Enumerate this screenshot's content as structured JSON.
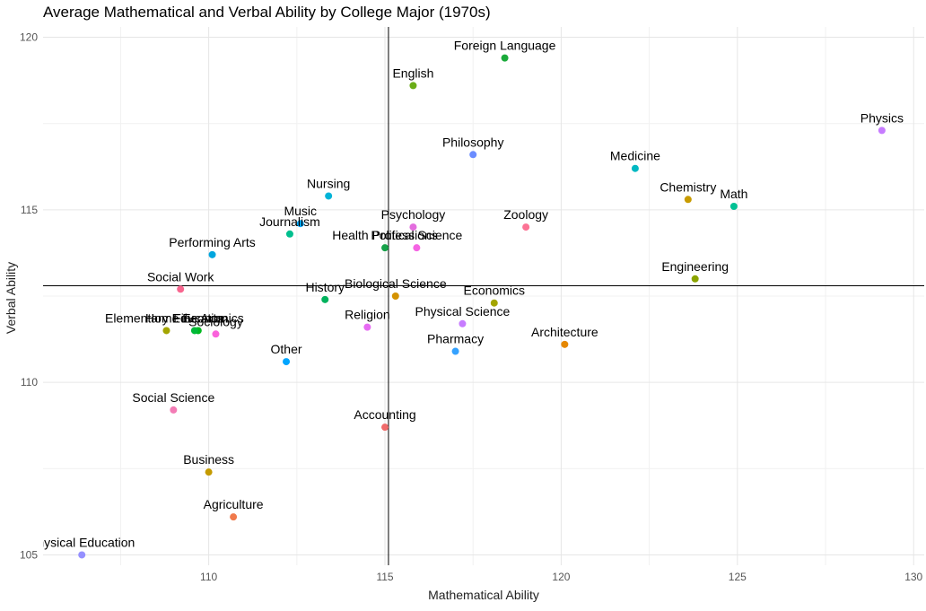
{
  "chart_data": {
    "type": "scatter",
    "title": "Average Mathematical and Verbal Ability by College Major (1970s)",
    "xlabel": "Mathematical Ability",
    "ylabel": "Verbal Ability",
    "xlim": [
      105.3,
      130.3
    ],
    "ylim": [
      104.7,
      120.3
    ],
    "xticks": [
      110,
      115,
      120,
      125,
      130
    ],
    "yticks": [
      105,
      110,
      115,
      120
    ],
    "grid": true,
    "legend": "none",
    "reference_lines": {
      "x": 115.1,
      "y": 112.8
    },
    "points": [
      {
        "label": "Foreign Language",
        "x": 118.4,
        "y": 119.4,
        "color": "#1aaa3a"
      },
      {
        "label": "English",
        "x": 115.8,
        "y": 118.6,
        "color": "#6aad18"
      },
      {
        "label": "Physics",
        "x": 129.1,
        "y": 117.3,
        "color": "#c77cff"
      },
      {
        "label": "Philosophy",
        "x": 117.5,
        "y": 116.6,
        "color": "#6b8cff"
      },
      {
        "label": "Medicine",
        "x": 122.1,
        "y": 116.2,
        "color": "#00b8c2"
      },
      {
        "label": "Nursing",
        "x": 113.4,
        "y": 115.4,
        "color": "#00b4d8"
      },
      {
        "label": "Chemistry",
        "x": 123.6,
        "y": 115.3,
        "color": "#c89b00"
      },
      {
        "label": "Math",
        "x": 124.9,
        "y": 115.1,
        "color": "#00c194"
      },
      {
        "label": "Music",
        "x": 112.6,
        "y": 114.6,
        "color": "#00a9ff"
      },
      {
        "label": "Psychology",
        "x": 115.8,
        "y": 114.5,
        "color": "#e36dde"
      },
      {
        "label": "Zoology",
        "x": 119.0,
        "y": 114.5,
        "color": "#fc7395"
      },
      {
        "label": "Journalism",
        "x": 112.3,
        "y": 114.3,
        "color": "#00bf8e"
      },
      {
        "label": "Health Professions",
        "x": 115.0,
        "y": 113.9,
        "color": "#17a24a"
      },
      {
        "label": "Political Science",
        "x": 115.9,
        "y": 113.9,
        "color": "#f564e3"
      },
      {
        "label": "Performing Arts",
        "x": 110.1,
        "y": 113.7,
        "color": "#00a6de"
      },
      {
        "label": "Engineering",
        "x": 123.8,
        "y": 113.0,
        "color": "#8ba400"
      },
      {
        "label": "Social Work",
        "x": 109.2,
        "y": 112.7,
        "color": "#f8668f"
      },
      {
        "label": "History",
        "x": 113.3,
        "y": 112.4,
        "color": "#00b25d"
      },
      {
        "label": "Biological Science",
        "x": 115.3,
        "y": 112.5,
        "color": "#d49200"
      },
      {
        "label": "Economics",
        "x": 118.1,
        "y": 112.3,
        "color": "#a3a500"
      },
      {
        "label": "Physical Science",
        "x": 117.2,
        "y": 111.7,
        "color": "#c77cff"
      },
      {
        "label": "Religion",
        "x": 114.5,
        "y": 111.6,
        "color": "#e76bf3"
      },
      {
        "label": "Elementary Education",
        "x": 108.8,
        "y": 111.5,
        "color": "#a3a500"
      },
      {
        "label": "Fine Arts",
        "x": 109.7,
        "y": 111.5,
        "color": "#00b81f"
      },
      {
        "label": "Home Economics",
        "x": 109.6,
        "y": 111.5,
        "color": "#00ba38"
      },
      {
        "label": "Sociology",
        "x": 110.2,
        "y": 111.4,
        "color": "#fa62db"
      },
      {
        "label": "Architecture",
        "x": 120.1,
        "y": 111.1,
        "color": "#e58700"
      },
      {
        "label": "Pharmacy",
        "x": 117.0,
        "y": 110.9,
        "color": "#35a2ff"
      },
      {
        "label": "Other",
        "x": 112.2,
        "y": 110.6,
        "color": "#00a5ff"
      },
      {
        "label": "Social Science",
        "x": 109.0,
        "y": 109.2,
        "color": "#f37bb5"
      },
      {
        "label": "Accounting",
        "x": 115.0,
        "y": 108.7,
        "color": "#f06a6a"
      },
      {
        "label": "Business",
        "x": 110.0,
        "y": 107.4,
        "color": "#c49a00"
      },
      {
        "label": "Agriculture",
        "x": 110.7,
        "y": 106.1,
        "color": "#f07a4c"
      },
      {
        "label": "Physical Education",
        "x": 106.4,
        "y": 105.0,
        "color": "#9590ff"
      }
    ]
  }
}
